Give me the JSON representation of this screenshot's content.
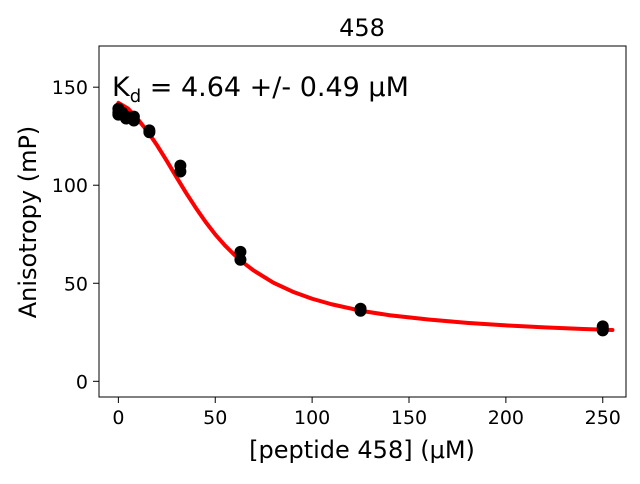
{
  "chart_data": {
    "type": "scatter",
    "title": "458",
    "xlabel": "[peptide 458] (μM)",
    "ylabel": "Anisotropy (mP)",
    "annotation": {
      "kd_prefix": "K",
      "kd_subscript": "d",
      "kd_text": " = 4.64 +/- 0.49 μM"
    },
    "xlim": [
      -10,
      262
    ],
    "ylim": [
      -8,
      171
    ],
    "xticks": [
      0,
      50,
      100,
      150,
      200,
      250
    ],
    "yticks": [
      0,
      50,
      100,
      150
    ],
    "xtick_labels": [
      "0",
      "50",
      "100",
      "150",
      "200",
      "250"
    ],
    "ytick_labels": [
      "0",
      "50",
      "100",
      "150"
    ],
    "grid": false,
    "legend": "none",
    "series": [
      {
        "kind": "points",
        "color": "#000000",
        "x": [
          0,
          0,
          0,
          2,
          2,
          4,
          4,
          8,
          8,
          16,
          16,
          32,
          32,
          63,
          63,
          125,
          125,
          250,
          250,
          250
        ],
        "y": [
          139,
          137,
          136,
          137,
          136,
          135,
          134,
          135,
          133,
          128,
          127,
          110,
          107,
          66,
          62,
          37,
          36,
          28,
          27,
          26
        ]
      },
      {
        "kind": "fit",
        "color": "#ff0000",
        "x": [
          0,
          5,
          10,
          15,
          20,
          25,
          30,
          35,
          40,
          45,
          50,
          55,
          60,
          65,
          70,
          80,
          90,
          100,
          110,
          125,
          140,
          160,
          180,
          200,
          220,
          240,
          255
        ],
        "y": [
          142,
          139.1,
          133.7,
          127.5,
          120.3,
          112.4,
          104.1,
          96.0,
          88.4,
          81.3,
          74.9,
          69.3,
          64.4,
          60.1,
          56.4,
          50.3,
          45.7,
          42.1,
          39.3,
          36.0,
          33.7,
          31.5,
          29.8,
          28.5,
          27.5,
          26.7,
          26.2
        ]
      }
    ]
  }
}
